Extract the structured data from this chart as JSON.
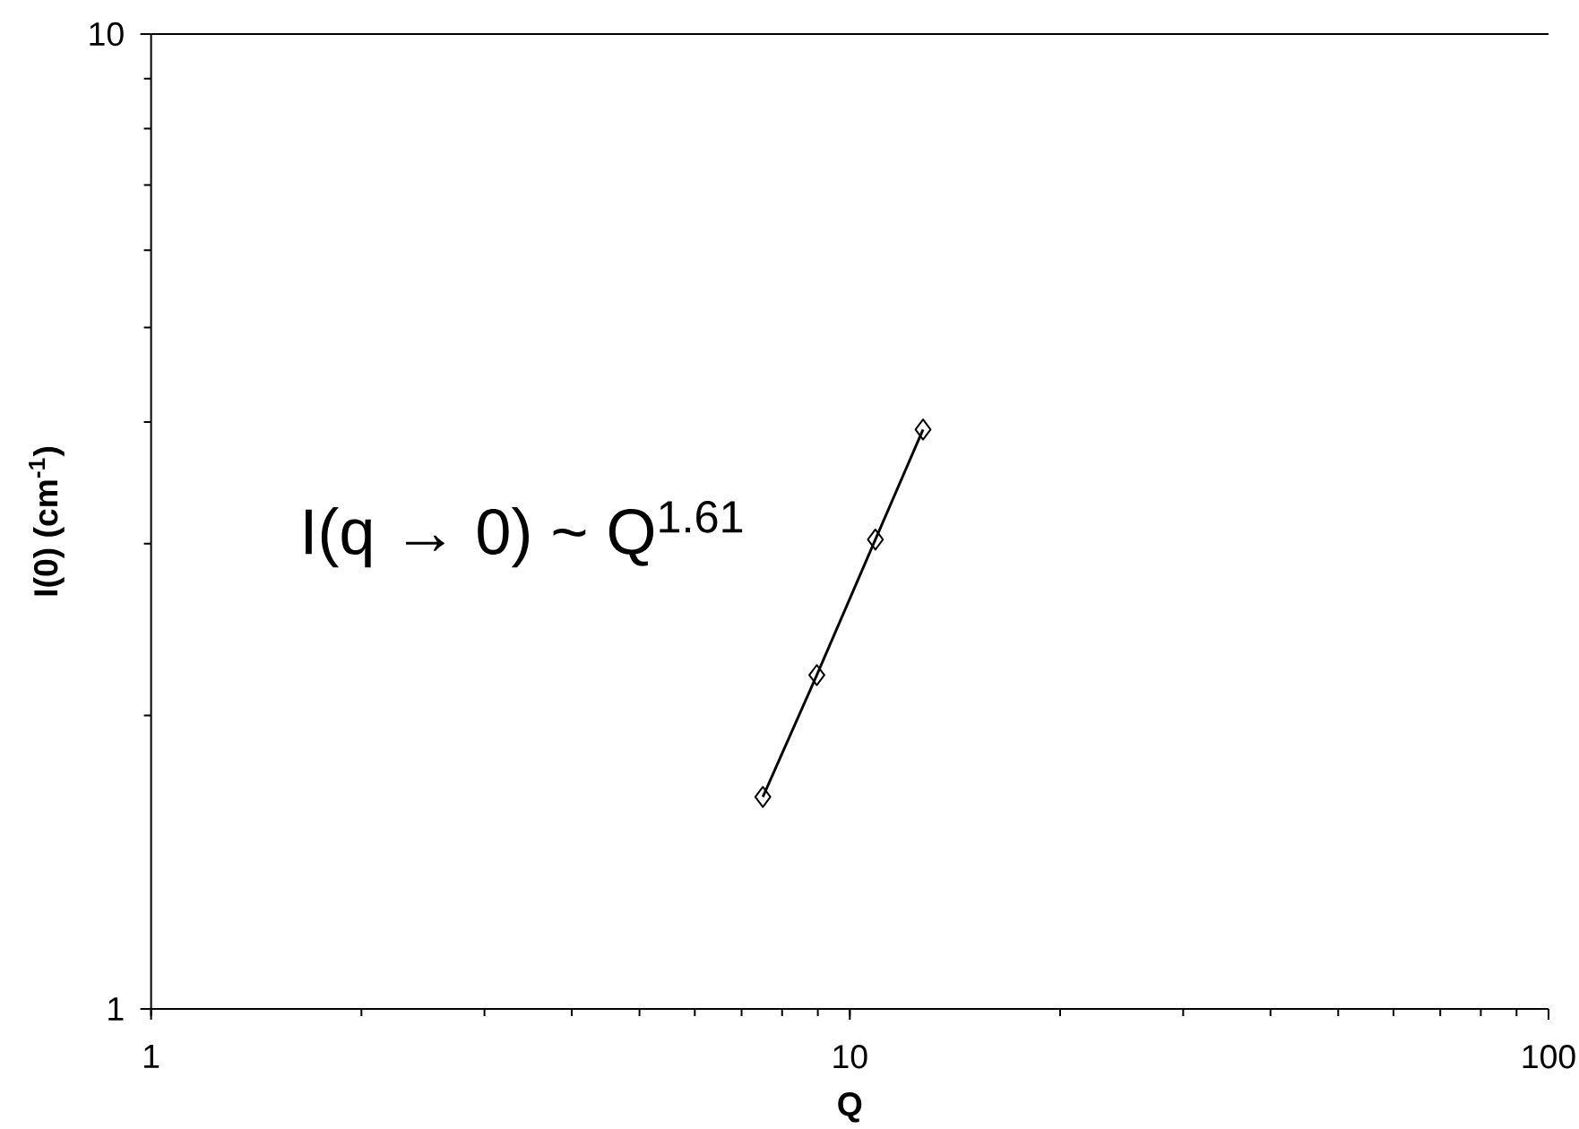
{
  "chart_data": {
    "type": "line",
    "xlabel": "Q",
    "ylabel": "I(0) (cm$^{-1}$)",
    "annotations": [
      "I(q → 0) ~ Q$^{1.61}$"
    ],
    "x": [
      7.51,
      8.97,
      10.88,
      12.73
    ],
    "series": [
      {
        "color": "#000000",
        "values": [
          1.65,
          2.2,
          3.03,
          3.93
        ]
      }
    ],
    "xlim": [
      1,
      100
    ],
    "ylim": [
      1,
      10
    ],
    "xticks": [
      1,
      10,
      100
    ],
    "yticks": [
      1,
      10
    ],
    "log": "xy",
    "marker": "diamond",
    "line_style": "solid"
  }
}
